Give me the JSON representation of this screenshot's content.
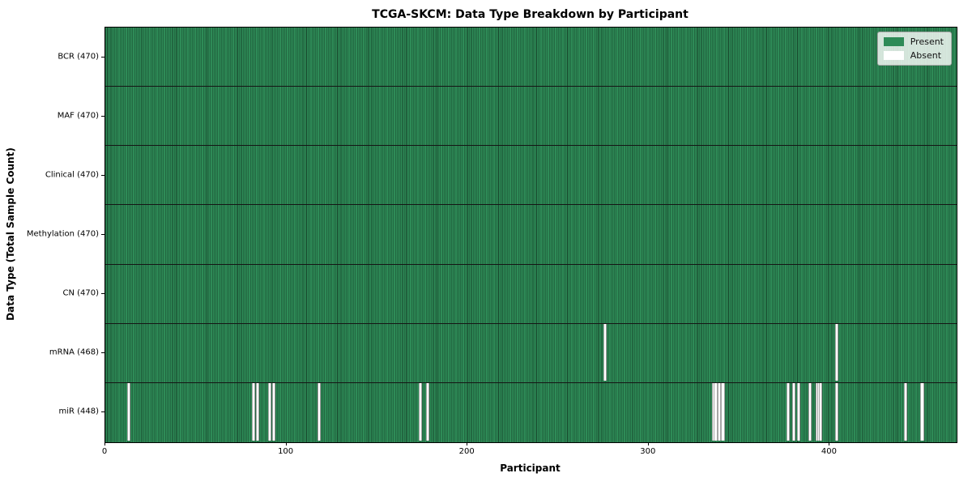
{
  "title": "TCGA-SKCM: Data Type Breakdown by Participant",
  "xlabel": "Participant",
  "ylabel": "Data Type (Total Sample Count)",
  "legend": {
    "present_label": "Present",
    "absent_label": "Absent",
    "position": "upper right"
  },
  "colors": {
    "present": "#2e8b57",
    "absent": "#ffffff",
    "cell_edge": "rgba(0,0,0,0.5)",
    "row_divider": "#151515",
    "spine": "#000000"
  },
  "chart_data": {
    "type": "heatmap",
    "title": "TCGA-SKCM: Data Type Breakdown by Participant",
    "xlabel": "Participant",
    "ylabel": "Data Type (Total Sample Count)",
    "legend": [
      "Present",
      "Absent"
    ],
    "legend_position": "upper right",
    "grid": false,
    "x_range": [
      0,
      470
    ],
    "x_ticks": [
      0,
      100,
      200,
      300,
      400
    ],
    "total_participants": 470,
    "rows": [
      {
        "label": "BCR (470)",
        "data_type": "BCR",
        "sample_count": 470,
        "absent_participants": []
      },
      {
        "label": "MAF (470)",
        "data_type": "MAF",
        "sample_count": 470,
        "absent_participants": []
      },
      {
        "label": "Clinical (470)",
        "data_type": "Clinical",
        "sample_count": 470,
        "absent_participants": []
      },
      {
        "label": "Methylation (470)",
        "data_type": "Methylation",
        "sample_count": 470,
        "absent_participants": []
      },
      {
        "label": "CN (470)",
        "data_type": "CN",
        "sample_count": 470,
        "absent_participants": []
      },
      {
        "label": "mRNA (468)",
        "data_type": "mRNA",
        "sample_count": 468,
        "absent_participants": [
          275,
          403
        ]
      },
      {
        "label": "miR (448)",
        "data_type": "miR",
        "sample_count": 448,
        "absent_participants": [
          12,
          81,
          83,
          90,
          92,
          117,
          173,
          177,
          335,
          336,
          338,
          340,
          376,
          379,
          382,
          388,
          392,
          393,
          394,
          403,
          441,
          450
        ]
      }
    ]
  }
}
